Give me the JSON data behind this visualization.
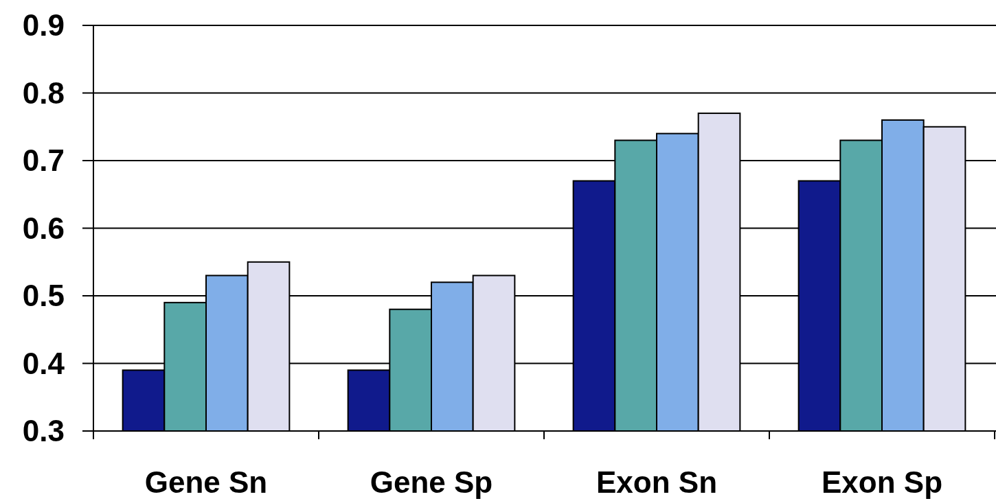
{
  "chart_data": {
    "type": "bar",
    "categories": [
      "Gene Sn",
      "Gene Sp",
      "Exon Sn",
      "Exon Sp"
    ],
    "series": [
      {
        "color": "#101a8c",
        "values": [
          0.39,
          0.39,
          0.67,
          0.67
        ]
      },
      {
        "color": "#58a8a8",
        "values": [
          0.49,
          0.48,
          0.73,
          0.73
        ]
      },
      {
        "color": "#80aee8",
        "values": [
          0.53,
          0.52,
          0.74,
          0.76
        ]
      },
      {
        "color": "#dfdff0",
        "values": [
          0.55,
          0.53,
          0.77,
          0.75
        ]
      }
    ],
    "ylim": [
      0.3,
      0.9
    ],
    "yticks": [
      0.3,
      0.4,
      0.5,
      0.6,
      0.7,
      0.8,
      0.9
    ],
    "grid": "y"
  }
}
